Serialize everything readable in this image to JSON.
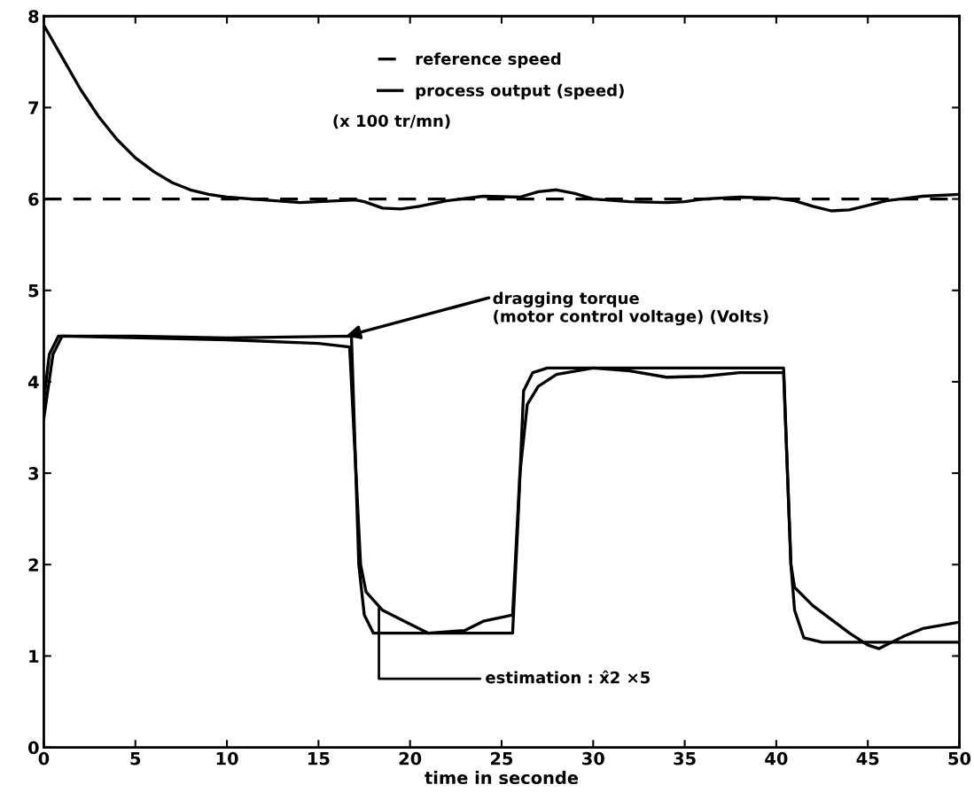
{
  "chart_data": {
    "type": "line",
    "xlabel": "time in seconde",
    "xlim": [
      0,
      50
    ],
    "xticks": [
      0,
      5,
      10,
      15,
      20,
      25,
      30,
      35,
      40,
      45,
      50
    ],
    "ylim": [
      0,
      8
    ],
    "yticks": [
      0,
      1,
      2,
      3,
      4,
      5,
      6,
      7,
      8
    ],
    "grid": false,
    "legend": "top",
    "marker": "none",
    "series": [
      {
        "name": "reference speed",
        "color": "#000000",
        "line_style": "dashed",
        "x": [
          0,
          50
        ],
        "values": [
          6,
          6
        ]
      },
      {
        "name": "process output (speed)",
        "color": "#000000",
        "line_style": "solid",
        "x": [
          0,
          1,
          2,
          3,
          4,
          5,
          6,
          7,
          8,
          9,
          10,
          12,
          14,
          15,
          16,
          17,
          17.5,
          18.5,
          19.5,
          20.5,
          22,
          24,
          26,
          27,
          28,
          29,
          30,
          32,
          34,
          35,
          36,
          38,
          40,
          41,
          42,
          43,
          44,
          45,
          46,
          48,
          50
        ],
        "values": [
          7.9,
          7.55,
          7.2,
          6.9,
          6.65,
          6.45,
          6.3,
          6.18,
          6.1,
          6.05,
          6.02,
          5.99,
          5.96,
          5.97,
          5.98,
          5.99,
          5.97,
          5.9,
          5.89,
          5.92,
          5.98,
          6.03,
          6.02,
          6.08,
          6.1,
          6.06,
          6.0,
          5.97,
          5.96,
          5.97,
          6.0,
          6.02,
          6.01,
          5.98,
          5.92,
          5.87,
          5.88,
          5.93,
          5.98,
          6.03,
          6.05
        ]
      },
      {
        "color": "#000000",
        "line_style": "solid",
        "x": [
          0,
          0.3,
          0.8,
          5,
          10,
          16.8,
          17.2,
          17.5,
          18,
          25.6,
          25.9,
          26.2,
          26.7,
          27.5,
          40.4,
          40.8,
          41,
          41.5,
          42.5,
          50
        ],
        "values": [
          3.8,
          4.3,
          4.5,
          4.5,
          4.48,
          4.5,
          2.0,
          1.45,
          1.25,
          1.25,
          2.5,
          3.9,
          4.1,
          4.15,
          4.15,
          2.0,
          1.5,
          1.2,
          1.15,
          1.15
        ]
      },
      {
        "color": "#000000",
        "line_style": "solid",
        "x": [
          0,
          0.5,
          1,
          10,
          15,
          16.7,
          17.3,
          17.6,
          18.5,
          19.5,
          21,
          23,
          24,
          25.6,
          26,
          26.4,
          27,
          28,
          30,
          32,
          34,
          36,
          38,
          40.4,
          40.8,
          41,
          42,
          43,
          44,
          45,
          45.6,
          46,
          47,
          48,
          50
        ],
        "values": [
          3.6,
          4.3,
          4.5,
          4.46,
          4.42,
          4.38,
          2.0,
          1.7,
          1.5,
          1.4,
          1.25,
          1.28,
          1.38,
          1.45,
          3.0,
          3.75,
          3.95,
          4.08,
          4.15,
          4.12,
          4.05,
          4.06,
          4.1,
          4.1,
          2.0,
          1.75,
          1.55,
          1.4,
          1.25,
          1.12,
          1.08,
          1.12,
          1.22,
          1.3,
          1.37
        ]
      }
    ],
    "annotations": [
      "(x 100 tr/mn)",
      {
        "text": "dragging torque\n(motor control voltage) (Volts)",
        "x": 16.5,
        "y": 4.5
      },
      {
        "text": "estimation : x̂2 ×5",
        "x": 18.3,
        "y": 1.55
      }
    ]
  }
}
